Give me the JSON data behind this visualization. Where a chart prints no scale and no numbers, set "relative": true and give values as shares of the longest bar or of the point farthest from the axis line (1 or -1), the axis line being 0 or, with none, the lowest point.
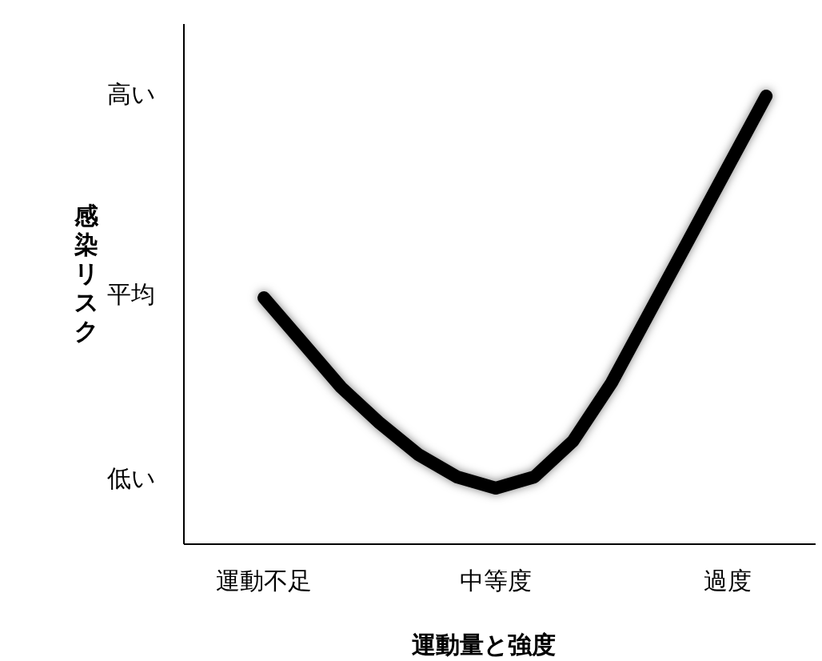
{
  "chart_data": {
    "type": "line",
    "xlabel": "運動量と強度",
    "ylabel": "感染リスク",
    "relative": true,
    "categories": [
      "運動不足",
      null,
      null,
      null,
      null,
      null,
      "中等度",
      null,
      null,
      null,
      null,
      null,
      "過度",
      null
    ],
    "annotations": [
      "高い",
      "平均",
      "低い"
    ],
    "series": [
      {
        "color": "#000000",
        "values": [
          0.55,
          0.45,
          0.35,
          0.27,
          0.2,
          0.15,
          0.125,
          0.15,
          0.23,
          0.36,
          0.52,
          0.68,
          0.84,
          1.0
        ]
      }
    ]
  }
}
